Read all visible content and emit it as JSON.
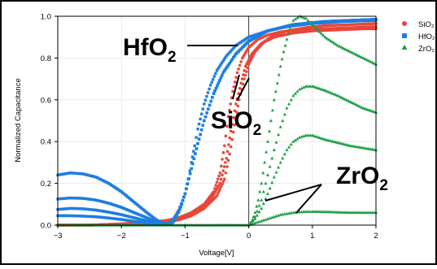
{
  "chart_data": {
    "type": "scatter",
    "title": "",
    "xlabel": "Voltage[V]",
    "ylabel": "Normalized Capacitance",
    "xlim": [
      -3,
      2
    ],
    "ylim": [
      0.0,
      1.0
    ],
    "x_ticks": [
      "−3",
      "−2",
      "−1",
      "0",
      "1",
      "2"
    ],
    "y_ticks": [
      "0.0",
      "0.2",
      "0.4",
      "0.6",
      "0.8",
      "1.0"
    ],
    "grid": true,
    "zero_line": 0,
    "legend_position": "top-right",
    "series": [
      {
        "name": "SiO₂",
        "marker": "circle",
        "color": "#e8473a",
        "curves": [
          {
            "x": [
              -3,
              -2.5,
              -2,
              -1.6,
              -1.3,
              -1.1,
              -0.9,
              -0.7,
              -0.55,
              -0.45,
              -0.38,
              -0.32,
              -0.25,
              -0.18,
              -0.1,
              0,
              0.15,
              0.3,
              0.5,
              0.8,
              1.2,
              1.6,
              2.0
            ],
            "y": [
              0.0,
              0.0,
              0.005,
              0.01,
              0.02,
              0.035,
              0.06,
              0.1,
              0.16,
              0.25,
              0.38,
              0.52,
              0.64,
              0.73,
              0.8,
              0.85,
              0.89,
              0.91,
              0.925,
              0.935,
              0.94,
              0.945,
              0.95
            ]
          },
          {
            "x": [
              -3,
              -2.5,
              -2,
              -1.6,
              -1.3,
              -1.1,
              -0.9,
              -0.7,
              -0.5,
              -0.38,
              -0.3,
              -0.22,
              -0.15,
              -0.07,
              0,
              0.1,
              0.25,
              0.4,
              0.6,
              0.9,
              1.2,
              1.6,
              2.0
            ],
            "y": [
              0.0,
              0.0,
              0.004,
              0.008,
              0.015,
              0.025,
              0.045,
              0.08,
              0.14,
              0.22,
              0.34,
              0.48,
              0.6,
              0.7,
              0.77,
              0.83,
              0.88,
              0.91,
              0.93,
              0.945,
              0.955,
              0.96,
              0.965
            ]
          },
          {
            "x": [
              -3,
              -2.5,
              -2,
              -1.6,
              -1.3,
              -1.0,
              -0.8,
              -0.6,
              -0.45,
              -0.35,
              -0.28,
              -0.2,
              -0.12,
              -0.05,
              0.05,
              0.2,
              0.4,
              0.7,
              1.0,
              1.4,
              1.8,
              2.0
            ],
            "y": [
              0.0,
              0.0,
              0.006,
              0.012,
              0.022,
              0.04,
              0.07,
              0.12,
              0.2,
              0.32,
              0.45,
              0.58,
              0.68,
              0.76,
              0.82,
              0.87,
              0.9,
              0.92,
              0.93,
              0.935,
              0.94,
              0.94
            ]
          }
        ]
      },
      {
        "name": "HfO₂",
        "marker": "square",
        "color": "#1e7ee0",
        "curves": [
          {
            "x": [
              -3,
              -2.8,
              -2.6,
              -2.4,
              -2.2,
              -2.0,
              -1.8,
              -1.6,
              -1.45,
              -1.35,
              -1.25,
              -1.2,
              -1.15,
              -1.1,
              -1.05,
              -1.0,
              -0.95,
              -0.9,
              -0.85,
              -0.8,
              -0.7,
              -0.6,
              -0.5,
              -0.35,
              -0.2,
              0,
              0.3,
              0.6,
              1.0,
              1.5,
              2.0
            ],
            "y": [
              0.24,
              0.25,
              0.245,
              0.23,
              0.2,
              0.16,
              0.11,
              0.06,
              0.025,
              0.01,
              0.005,
              0.01,
              0.03,
              0.06,
              0.1,
              0.15,
              0.22,
              0.3,
              0.38,
              0.46,
              0.58,
              0.67,
              0.74,
              0.81,
              0.86,
              0.9,
              0.93,
              0.95,
              0.965,
              0.975,
              0.98
            ]
          },
          {
            "x": [
              -3,
              -2.8,
              -2.6,
              -2.4,
              -2.2,
              -2.0,
              -1.8,
              -1.6,
              -1.45,
              -1.35,
              -1.28,
              -1.2,
              -1.1,
              -1.0,
              -0.9,
              -0.8,
              -0.7,
              -0.55,
              -0.4,
              -0.2,
              0,
              0.3,
              0.7,
              1.2,
              2.0
            ],
            "y": [
              0.125,
              0.13,
              0.128,
              0.12,
              0.105,
              0.085,
              0.06,
              0.035,
              0.015,
              0.005,
              0.003,
              0.02,
              0.07,
              0.15,
              0.27,
              0.39,
              0.5,
              0.63,
              0.73,
              0.82,
              0.88,
              0.93,
              0.96,
              0.975,
              0.985
            ]
          },
          {
            "x": [
              -3,
              -2.8,
              -2.6,
              -2.4,
              -2.2,
              -2.0,
              -1.8,
              -1.6,
              -1.45,
              -1.35,
              -1.28,
              -1.2,
              -1.1,
              -1.0,
              -0.9,
              -0.8,
              -0.7,
              -0.55,
              -0.4,
              -0.2,
              0,
              0.3,
              0.7,
              1.2,
              2.0
            ],
            "y": [
              0.075,
              0.08,
              0.078,
              0.072,
              0.062,
              0.05,
              0.035,
              0.02,
              0.008,
              0.003,
              0.002,
              0.02,
              0.07,
              0.15,
              0.27,
              0.39,
              0.5,
              0.63,
              0.73,
              0.82,
              0.88,
              0.93,
              0.96,
              0.975,
              0.985
            ]
          },
          {
            "x": [
              -3,
              -2.8,
              -2.6,
              -2.4,
              -2.2,
              -2.0,
              -1.8,
              -1.6,
              -1.45,
              -1.35,
              -1.28,
              -1.2,
              -1.1,
              -1.0,
              -0.9,
              -0.8,
              -0.7,
              -0.55,
              -0.4,
              -0.2,
              0,
              0.3,
              0.7,
              1.2,
              2.0
            ],
            "y": [
              0.045,
              0.045,
              0.043,
              0.04,
              0.034,
              0.027,
              0.018,
              0.01,
              0.004,
              0.002,
              0.001,
              0.02,
              0.07,
              0.15,
              0.27,
              0.39,
              0.5,
              0.63,
              0.73,
              0.82,
              0.88,
              0.93,
              0.96,
              0.975,
              0.985
            ]
          }
        ]
      },
      {
        "name": "ZrO₂",
        "marker": "triangle",
        "color": "#1a9e45",
        "curves": [
          {
            "x": [
              -3,
              -1.5,
              -0.5,
              0,
              0.05,
              0.1,
              0.15,
              0.2,
              0.25,
              0.3,
              0.35,
              0.4,
              0.45,
              0.5,
              0.55,
              0.6,
              0.65,
              0.7,
              0.8,
              0.9,
              1.0,
              1.2,
              1.4,
              1.6,
              1.8,
              2.0
            ],
            "y": [
              0.0,
              0.0,
              0.0,
              0.0,
              0.02,
              0.06,
              0.12,
              0.2,
              0.3,
              0.4,
              0.5,
              0.6,
              0.68,
              0.76,
              0.83,
              0.89,
              0.94,
              0.98,
              1.0,
              0.99,
              0.96,
              0.9,
              0.86,
              0.83,
              0.8,
              0.77
            ]
          },
          {
            "x": [
              0,
              0.1,
              0.2,
              0.3,
              0.4,
              0.5,
              0.6,
              0.7,
              0.8,
              0.9,
              1.0,
              1.2,
              1.4,
              1.6,
              1.8,
              2.0
            ],
            "y": [
              0.0,
              0.04,
              0.12,
              0.24,
              0.36,
              0.47,
              0.56,
              0.62,
              0.65,
              0.665,
              0.665,
              0.645,
              0.62,
              0.59,
              0.56,
              0.54
            ]
          },
          {
            "x": [
              0,
              0.1,
              0.2,
              0.3,
              0.4,
              0.5,
              0.6,
              0.7,
              0.8,
              0.9,
              1.0,
              1.2,
              1.4,
              1.6,
              1.8,
              2.0
            ],
            "y": [
              0.0,
              0.03,
              0.08,
              0.15,
              0.23,
              0.3,
              0.36,
              0.4,
              0.42,
              0.43,
              0.43,
              0.41,
              0.395,
              0.38,
              0.37,
              0.36
            ]
          },
          {
            "x": [
              0,
              0.1,
              0.2,
              0.3,
              0.4,
              0.5,
              0.6,
              0.7,
              0.8,
              0.9,
              1.0,
              1.2,
              1.4,
              1.6,
              1.8,
              2.0
            ],
            "y": [
              0.0,
              0.01,
              0.02,
              0.03,
              0.04,
              0.05,
              0.055,
              0.06,
              0.063,
              0.065,
              0.065,
              0.064,
              0.062,
              0.06,
              0.06,
              0.06
            ]
          }
        ]
      }
    ],
    "annotations": [
      {
        "label": "HfO",
        "subscript": "2"
      },
      {
        "label": "SiO",
        "subscript": "2"
      },
      {
        "label": "ZrO",
        "subscript": "2"
      }
    ]
  }
}
